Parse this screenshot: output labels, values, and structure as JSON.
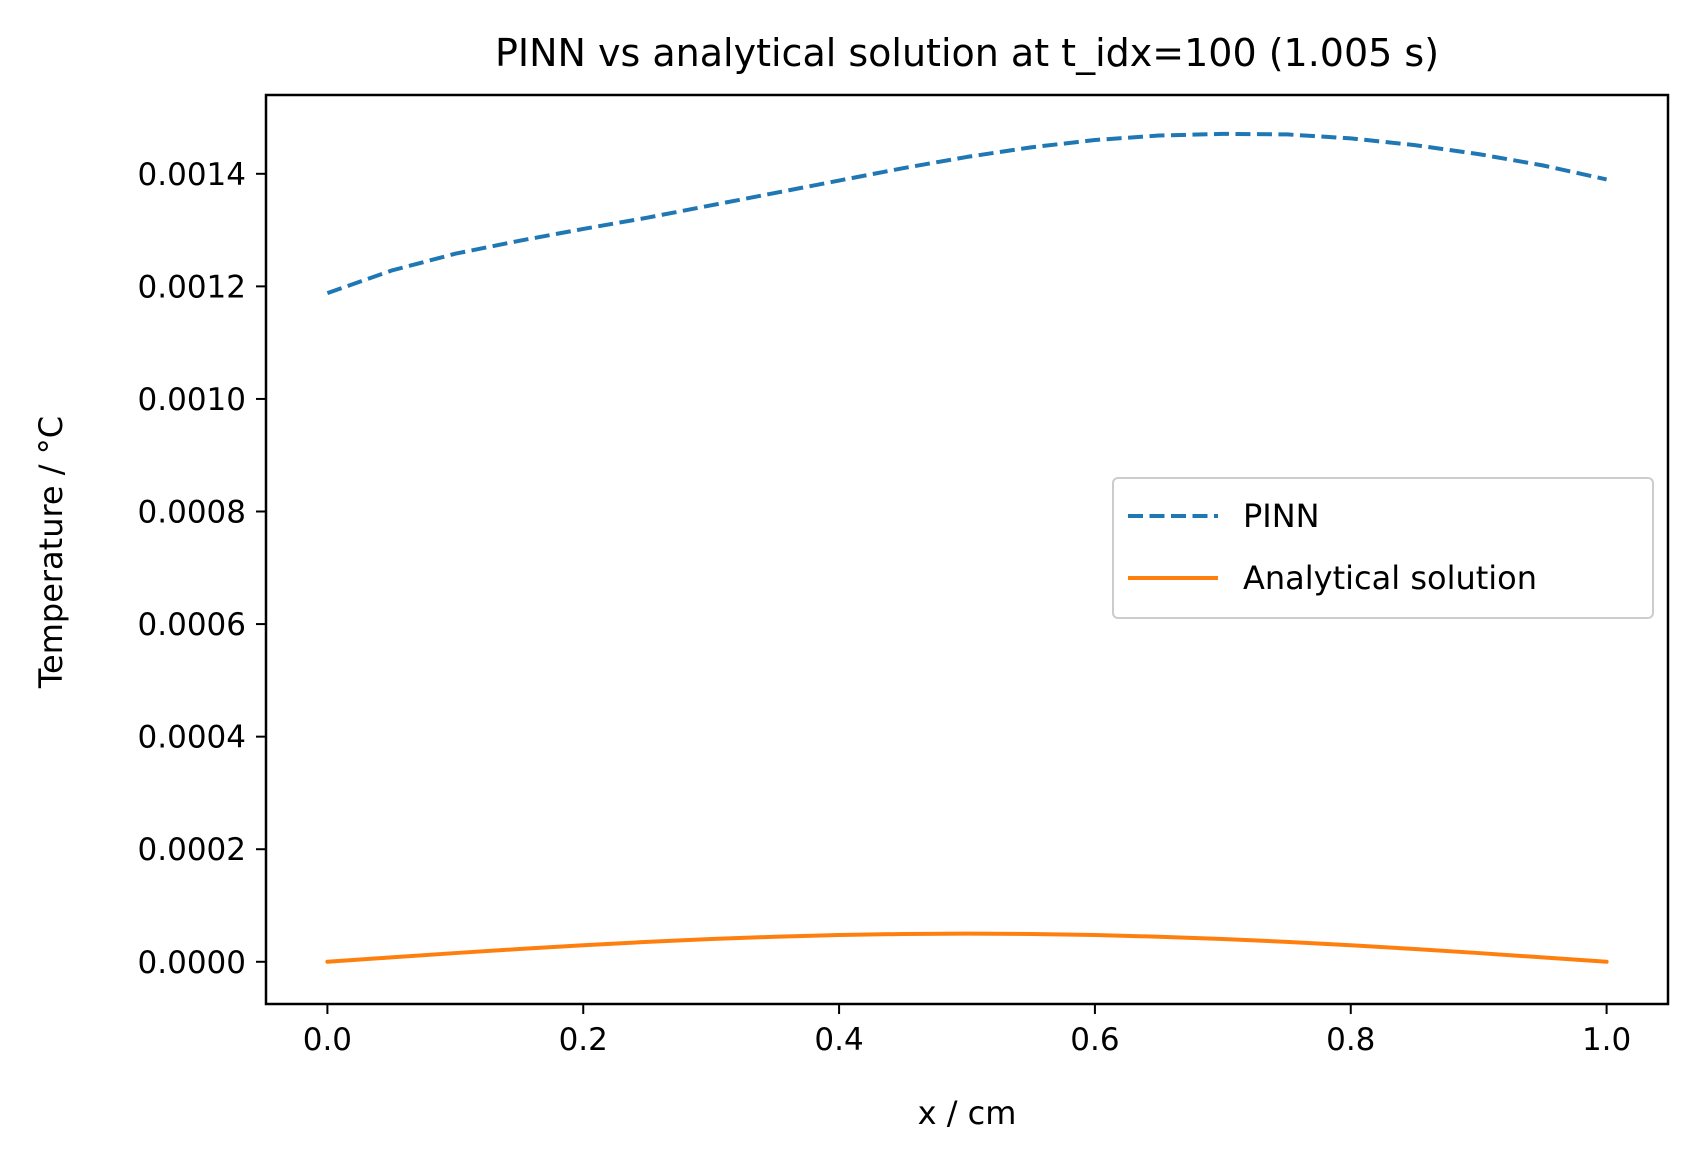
{
  "chart_data": {
    "type": "line",
    "title": "PINN vs analytical solution at t_idx=100 (1.005 s)",
    "xlabel": "x / cm",
    "ylabel": "Temperature / °C",
    "xlim": [
      -0.048,
      1.048
    ],
    "ylim": [
      -7.5e-05,
      0.00154
    ],
    "xticks": [
      0.0,
      0.2,
      0.4,
      0.6,
      0.8,
      1.0
    ],
    "xtick_labels": [
      "0.0",
      "0.2",
      "0.4",
      "0.6",
      "0.8",
      "1.0"
    ],
    "yticks": [
      0.0,
      0.0002,
      0.0004,
      0.0006,
      0.0008,
      0.001,
      0.0012,
      0.0014
    ],
    "ytick_labels": [
      "0.0000",
      "0.0002",
      "0.0004",
      "0.0006",
      "0.0008",
      "0.0010",
      "0.0012",
      "0.0014"
    ],
    "grid": false,
    "legend_position": "center-right",
    "series": [
      {
        "name": "PINN",
        "color": "#1f77b4",
        "line_style": "dashed",
        "x": [
          0.0,
          0.05,
          0.1,
          0.15,
          0.2,
          0.25,
          0.3,
          0.35,
          0.4,
          0.45,
          0.5,
          0.55,
          0.6,
          0.65,
          0.7,
          0.75,
          0.8,
          0.85,
          0.9,
          0.95,
          1.0
        ],
        "y": [
          0.001188,
          0.001228,
          0.001258,
          0.001281,
          0.001302,
          0.001322,
          0.001344,
          0.001366,
          0.001388,
          0.00141,
          0.00143,
          0.001447,
          0.00146,
          0.001468,
          0.001471,
          0.00147,
          0.001463,
          0.001451,
          0.001435,
          0.001415,
          0.00139
        ]
      },
      {
        "name": "Analytical solution",
        "color": "#ff7f0e",
        "line_style": "solid",
        "x": [
          0.0,
          0.05,
          0.1,
          0.15,
          0.2,
          0.25,
          0.3,
          0.35,
          0.4,
          0.45,
          0.5,
          0.55,
          0.6,
          0.65,
          0.7,
          0.75,
          0.8,
          0.85,
          0.9,
          0.95,
          1.0
        ],
        "y": [
          0.0,
          7.8e-06,
          1.55e-05,
          2.27e-05,
          2.94e-05,
          3.54e-05,
          4.05e-05,
          4.45e-05,
          4.76e-05,
          4.94e-05,
          5e-05,
          4.94e-05,
          4.76e-05,
          4.45e-05,
          4.05e-05,
          3.54e-05,
          2.94e-05,
          2.27e-05,
          1.55e-05,
          7.8e-06,
          0.0
        ]
      }
    ]
  }
}
